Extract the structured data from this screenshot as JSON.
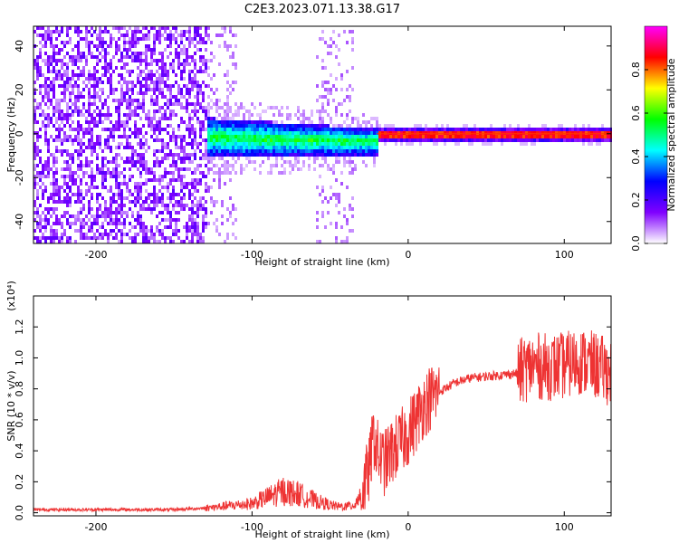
{
  "title": "C2E3.2023.071.13.38.G17",
  "chart_data": [
    {
      "type": "heatmap",
      "xlabel": "Height of straight line (km)",
      "ylabel": "Frequency (Hz)",
      "xlim": [
        -240,
        130
      ],
      "ylim": [
        -50,
        49
      ],
      "xticks": [
        -200,
        -100,
        0,
        100
      ],
      "xtick_labels": [
        "-200",
        "-100",
        "0",
        "100"
      ],
      "yticks": [
        -40,
        -20,
        0,
        20,
        40
      ],
      "ytick_labels": [
        "-40",
        "-20",
        "0",
        "20",
        "40"
      ],
      "colorbar": {
        "label": "Normalized spectral amplitude",
        "range": [
          0,
          1
        ],
        "ticks": [
          0.0,
          0.2,
          0.4,
          0.6,
          0.8
        ],
        "tick_labels": [
          "0.0",
          "0.2",
          "0.4",
          "0.6",
          "0.8"
        ],
        "colors": [
          "#ffffff",
          "#8000ff",
          "#0000ff",
          "#00ffff",
          "#00ff00",
          "#ffff00",
          "#ff0000",
          "#ff00ff"
        ]
      },
      "regions": [
        {
          "x_range": [
            -240,
            -130
          ],
          "band_hz": 49,
          "level": 0.1
        },
        {
          "x_range": [
            -130,
            -20
          ],
          "band_hz": 8,
          "level": 0.3
        },
        {
          "x_range": [
            -20,
            130
          ],
          "band_hz": 1,
          "level": 0.85
        }
      ],
      "grid": false
    },
    {
      "type": "line",
      "xlabel": "Height of straight line (km)",
      "ylabel": "SNR (10 * v/v)",
      "y_multiplier": "(x10⁴)",
      "xlim": [
        -240,
        130
      ],
      "ylim": [
        -0.02,
        1.4
      ],
      "xticks": [
        -200,
        -100,
        0,
        100
      ],
      "xtick_labels": [
        "-200",
        "-100",
        "0",
        "100"
      ],
      "yticks": [
        0.0,
        0.2,
        0.4,
        0.6,
        0.8,
        1.0,
        1.2
      ],
      "ytick_labels": [
        "0.0",
        "0.2",
        "0.4",
        "0.6",
        "0.8",
        "1.0",
        "1.2"
      ],
      "series": [
        {
          "color": "#ee3333",
          "x": [
            -240,
            -200,
            -150,
            -130,
            -120,
            -100,
            -90,
            -80,
            -70,
            -60,
            -50,
            -45,
            -40,
            -35,
            -30,
            -25,
            -22,
            -20,
            -18,
            -15,
            -10,
            -5,
            0,
            5,
            10,
            15,
            20,
            30,
            40,
            50,
            60,
            70,
            75,
            80,
            90,
            100,
            110,
            120,
            130
          ],
          "y": [
            0.02,
            0.02,
            0.02,
            0.03,
            0.04,
            0.06,
            0.1,
            0.14,
            0.12,
            0.08,
            0.05,
            0.04,
            0.04,
            0.05,
            0.12,
            0.28,
            0.5,
            0.4,
            0.35,
            0.32,
            0.4,
            0.45,
            0.52,
            0.6,
            0.7,
            0.75,
            0.78,
            0.84,
            0.87,
            0.88,
            0.89,
            0.9,
            0.93,
            0.95,
            0.94,
            0.95,
            0.98,
            0.95,
            0.9
          ]
        }
      ],
      "grid": false
    }
  ]
}
